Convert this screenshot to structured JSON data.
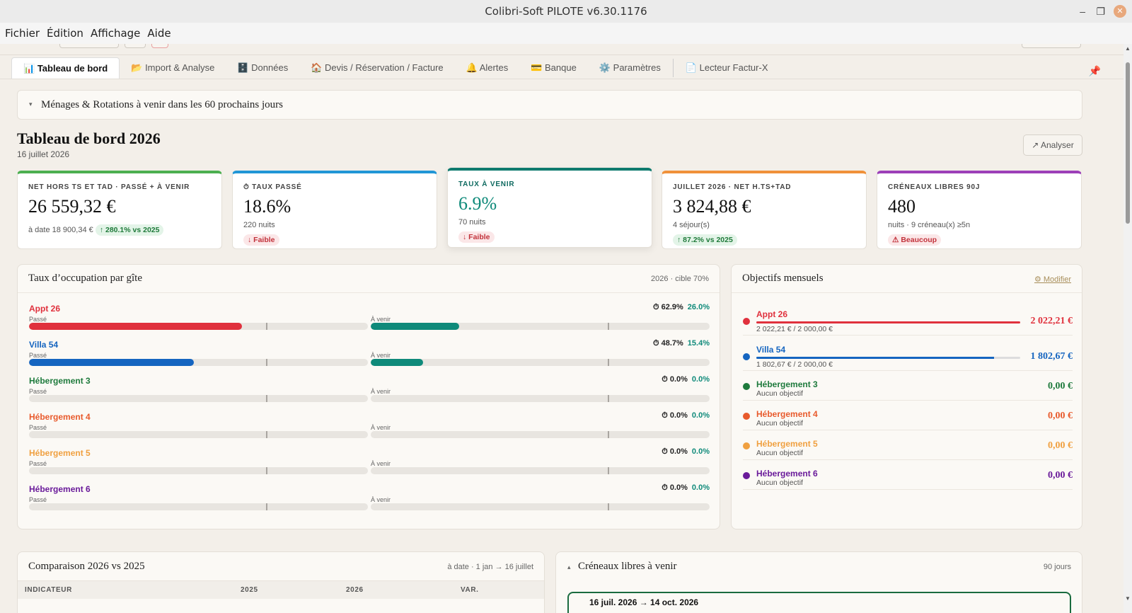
{
  "window": {
    "title": "Colibri-Soft PILOTE v6.30.1176"
  },
  "menu": [
    "Fichier",
    "Édition",
    "Affichage",
    "Aide"
  ],
  "tabs": [
    {
      "icon": "📊",
      "label": "Tableau de bord"
    },
    {
      "icon": "📂",
      "label": "Import & Analyse"
    },
    {
      "icon": "🗄️",
      "label": "Données"
    },
    {
      "icon": "🏠",
      "label": "Devis / Réservation / Facture"
    },
    {
      "icon": "🔔",
      "label": "Alertes"
    },
    {
      "icon": "💳",
      "label": "Banque"
    },
    {
      "icon": "⚙️",
      "label": "Paramètres"
    },
    {
      "icon": "📄",
      "label": "Lecteur Factur-X"
    }
  ],
  "pin_icon": "📌",
  "menage": {
    "label": "Ménages & Rotations à venir dans les 60 prochains jours",
    "caret": "▾"
  },
  "header": {
    "title": "Tableau de bord 2026",
    "date": "16 juillet 2026",
    "analyser": "↗ Analyser"
  },
  "kpis": [
    {
      "label": "NET HORS TS ET TAD · PASSÉ + À VENIR",
      "value": "26 559,32 €",
      "sub": "à date 18 900,34 €",
      "badge": "↑ 280.1% vs 2025",
      "badge_type": "up",
      "color": "#4caf50"
    },
    {
      "label": "⏱ TAUX PASSÉ",
      "value": "18.6%",
      "sub": "220 nuits",
      "badge": "↓ Faible",
      "badge_type": "down",
      "color": "#2196d6"
    },
    {
      "label": "TAUX À VENIR",
      "value": "6.9%",
      "sub": "70 nuits",
      "badge": "↓ Faible",
      "badge_type": "down",
      "color": "#0f7a6e"
    },
    {
      "label": "JUILLET 2026 · NET H.TS+TAD",
      "value": "3 824,88 €",
      "sub": "4 séjour(s)",
      "badge": "↑ 87.2% vs 2025",
      "badge_type": "up",
      "color": "#f0913a"
    },
    {
      "label": "CRÉNEAUX LIBRES 90J",
      "value": "480",
      "sub": "nuits · 9 créneau(x) ≥5n",
      "badge": "⚠ Beaucoup",
      "badge_type": "down",
      "color": "#9c3fb8"
    }
  ],
  "occupancy": {
    "title": "Taux d’occupation par gîte",
    "meta": "2026 · cible 70%",
    "label_past": "Passé",
    "label_future": "À venir",
    "rows": [
      {
        "name": "Appt 26",
        "color": "#e0313d",
        "past": "62.9%",
        "future": "26.0%",
        "past_frac": 0.629,
        "future_frac": 0.26
      },
      {
        "name": "Villa 54",
        "color": "#1565c0",
        "past": "48.7%",
        "future": "15.4%",
        "past_frac": 0.487,
        "future_frac": 0.154
      },
      {
        "name": "Hébergement 3",
        "color": "#1e7a3c",
        "past": "0.0%",
        "future": "0.0%",
        "past_frac": 0,
        "future_frac": 0
      },
      {
        "name": "Hébergement 4",
        "color": "#e85a2c",
        "past": "0.0%",
        "future": "0.0%",
        "past_frac": 0,
        "future_frac": 0
      },
      {
        "name": "Hébergement 5",
        "color": "#f0a040",
        "past": "0.0%",
        "future": "0.0%",
        "past_frac": 0,
        "future_frac": 0
      },
      {
        "name": "Hébergement 6",
        "color": "#6a1b9a",
        "past": "0.0%",
        "future": "0.0%",
        "past_frac": 0,
        "future_frac": 0
      }
    ],
    "future_color": "#0f8a7a",
    "timer_icon": "⏱"
  },
  "objectives": {
    "title": "Objectifs mensuels",
    "modify": "⚙ Modifier",
    "rows": [
      {
        "name": "Appt 26",
        "color": "#e0313d",
        "sub": "2 022,21 € / 2 000,00 €",
        "amount": "2 022,21 €",
        "progress": 1.0
      },
      {
        "name": "Villa 54",
        "color": "#1565c0",
        "sub": "1 802,67 € / 2 000,00 €",
        "amount": "1 802,67 €",
        "progress": 0.901
      },
      {
        "name": "Hébergement 3",
        "color": "#1e7a3c",
        "sub": "Aucun objectif",
        "amount": "0,00 €"
      },
      {
        "name": "Hébergement 4",
        "color": "#e85a2c",
        "sub": "Aucun objectif",
        "amount": "0,00 €"
      },
      {
        "name": "Hébergement 5",
        "color": "#f0a040",
        "sub": "Aucun objectif",
        "amount": "0,00 €"
      },
      {
        "name": "Hébergement 6",
        "color": "#6a1b9a",
        "sub": "Aucun objectif",
        "amount": "0,00 €"
      }
    ]
  },
  "comparison": {
    "title": "Comparaison 2026 vs 2025",
    "meta": "à date · 1 jan → 16 juillet",
    "columns": [
      "INDICATEUR",
      "2025",
      "2026",
      "VAR."
    ]
  },
  "creneaux": {
    "title": "Créneaux libres à venir",
    "caret": "▴",
    "meta": "90 jours",
    "first_range": "16 juil. 2026 → 14 oct. 2026"
  }
}
